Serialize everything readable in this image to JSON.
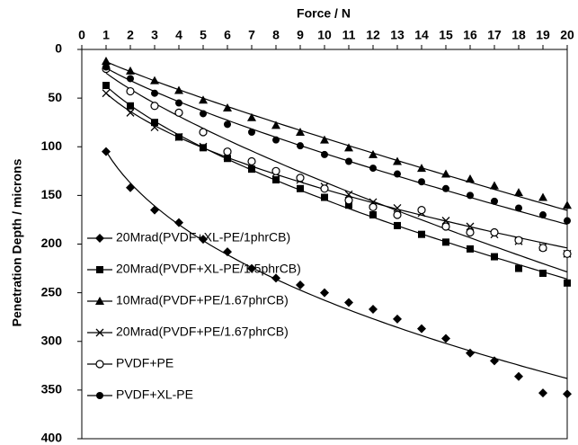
{
  "chart_data": {
    "type": "scatter",
    "x_label": "Force / N",
    "y_label": "Penetration Depth / microns",
    "x": [
      1,
      2,
      3,
      4,
      5,
      6,
      7,
      8,
      9,
      10,
      11,
      12,
      13,
      14,
      15,
      16,
      17,
      18,
      19,
      20
    ],
    "xlim": [
      0,
      20
    ],
    "xticks": [
      0,
      1,
      2,
      3,
      4,
      5,
      6,
      7,
      8,
      9,
      10,
      11,
      12,
      13,
      14,
      15,
      16,
      17,
      18,
      19,
      20
    ],
    "ylim": [
      0,
      400
    ],
    "yticks": [
      0,
      50,
      100,
      150,
      200,
      250,
      300,
      350,
      400
    ],
    "x_axis_position": "top",
    "y_inverted": true,
    "trendline": "power",
    "legend": "lower left",
    "series": [
      {
        "name": "20Mrad(PVDF+XL-PE/1phrCB)",
        "color": "#000000",
        "marker": "diamond",
        "values": [
          105,
          142,
          165,
          178,
          195,
          208,
          225,
          235,
          242,
          250,
          260,
          267,
          277,
          287,
          297,
          312,
          320,
          336,
          353,
          354
        ]
      },
      {
        "name": "20Mrad(PVDF+XL-PE/1.5phrCB)",
        "color": "#000000",
        "marker": "square",
        "values": [
          37,
          58,
          75,
          90,
          101,
          112,
          123,
          134,
          143,
          152,
          160,
          170,
          181,
          190,
          198,
          205,
          213,
          225,
          230,
          240
        ]
      },
      {
        "name": "10Mrad(PVDF+PE/1.67phrCB)",
        "color": "#000000",
        "marker": "triangle",
        "values": [
          12,
          22,
          32,
          42,
          52,
          60,
          70,
          78,
          85,
          93,
          101,
          108,
          115,
          122,
          128,
          133,
          140,
          147,
          152,
          160
        ]
      },
      {
        "name": "20Mrad(PVDF+PE/1.67phrCB)",
        "color": "#000000",
        "marker": "x",
        "values": [
          45,
          65,
          80,
          90,
          100,
          110,
          118,
          127,
          134,
          141,
          149,
          157,
          163,
          168,
          176,
          182,
          190,
          197,
          203,
          210
        ]
      },
      {
        "name": "PVDF+PE",
        "color": "#000000",
        "marker": "open-circle",
        "values": [
          20,
          43,
          58,
          65,
          85,
          105,
          115,
          125,
          132,
          143,
          155,
          162,
          170,
          165,
          182,
          188,
          188,
          196,
          204,
          210
        ]
      },
      {
        "name": "PVDF+XL-PE",
        "color": "#000000",
        "marker": "circle",
        "values": [
          18,
          30,
          45,
          55,
          66,
          77,
          85,
          93,
          99,
          108,
          115,
          122,
          128,
          136,
          143,
          150,
          156,
          163,
          170,
          176
        ]
      }
    ]
  }
}
